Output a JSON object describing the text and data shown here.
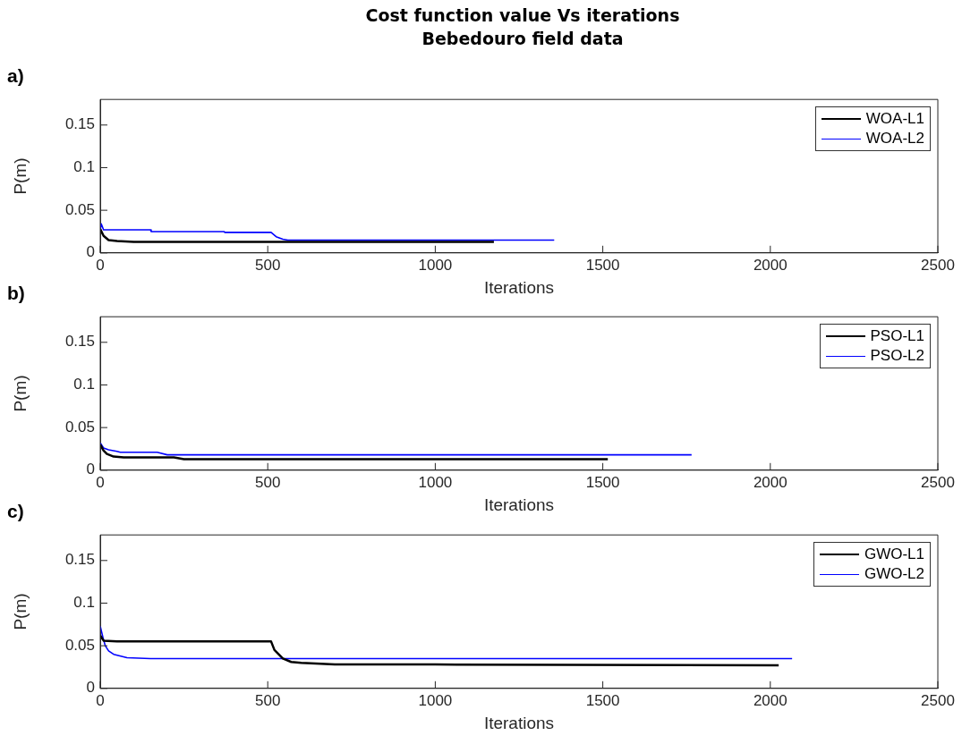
{
  "chart_data": [
    {
      "type": "line",
      "title": "Cost function value Vs iterations",
      "subtitle": "Bebedouro field data",
      "annotations": [
        "a)"
      ],
      "xlabel": "Iterations",
      "ylabel": "P(m)",
      "xlim": [
        0,
        2500
      ],
      "xticks": [
        0,
        500,
        1000,
        1500,
        2000,
        2500
      ],
      "ylim": [
        0,
        0.18
      ],
      "yticks": [
        0,
        0.05,
        0.1,
        0.15
      ],
      "grid": false,
      "legend": "top right",
      "marker": "none",
      "line_style": "solid",
      "series": [
        {
          "name": "WOA-L1",
          "color": "#000000",
          "x": [
            0,
            10,
            25,
            50,
            100,
            300,
            1175
          ],
          "values": [
            0.028,
            0.02,
            0.015,
            0.014,
            0.013,
            0.013,
            0.013
          ]
        },
        {
          "name": "WOA-L2",
          "color": "#0000ff",
          "x": [
            0,
            3,
            10,
            150,
            152,
            370,
            372,
            510,
            525,
            545,
            560,
            800,
            1355
          ],
          "values": [
            0.027,
            0.034,
            0.027,
            0.027,
            0.025,
            0.025,
            0.024,
            0.024,
            0.019,
            0.016,
            0.015,
            0.015,
            0.015
          ]
        }
      ]
    },
    {
      "type": "line",
      "annotations": [
        "b)"
      ],
      "xlabel": "Iterations",
      "ylabel": "P(m)",
      "xlim": [
        0,
        2500
      ],
      "xticks": [
        0,
        500,
        1000,
        1500,
        2000,
        2500
      ],
      "ylim": [
        0,
        0.18
      ],
      "yticks": [
        0,
        0.05,
        0.1,
        0.15
      ],
      "grid": false,
      "legend": "top right",
      "marker": "none",
      "line_style": "solid",
      "series": [
        {
          "name": "PSO-L1",
          "color": "#000000",
          "x": [
            0,
            10,
            20,
            40,
            70,
            220,
            250,
            1515
          ],
          "values": [
            0.03,
            0.023,
            0.019,
            0.016,
            0.015,
            0.015,
            0.013,
            0.013
          ]
        },
        {
          "name": "PSO-L2",
          "color": "#0000ff",
          "x": [
            0,
            10,
            25,
            50,
            60,
            170,
            200,
            1765
          ],
          "values": [
            0.032,
            0.026,
            0.024,
            0.022,
            0.021,
            0.021,
            0.018,
            0.018
          ]
        }
      ]
    },
    {
      "type": "line",
      "annotations": [
        "c)"
      ],
      "xlabel": "Iterations",
      "ylabel": "P(m)",
      "xlim": [
        0,
        2500
      ],
      "xticks": [
        0,
        500,
        1000,
        1500,
        2000,
        2500
      ],
      "ylim": [
        0,
        0.18
      ],
      "yticks": [
        0,
        0.05,
        0.1,
        0.15
      ],
      "grid": false,
      "legend": "top right",
      "marker": "none",
      "line_style": "solid",
      "series": [
        {
          "name": "GWO-L1",
          "color": "#000000",
          "x": [
            0,
            10,
            50,
            510,
            520,
            545,
            570,
            600,
            700,
            1000,
            2025
          ],
          "values": [
            0.062,
            0.056,
            0.055,
            0.055,
            0.045,
            0.035,
            0.031,
            0.03,
            0.028,
            0.028,
            0.027
          ]
        },
        {
          "name": "GWO-L2",
          "color": "#0000ff",
          "x": [
            0,
            8,
            15,
            25,
            40,
            80,
            150,
            2065
          ],
          "values": [
            0.073,
            0.06,
            0.05,
            0.044,
            0.04,
            0.036,
            0.035,
            0.035
          ]
        }
      ]
    }
  ]
}
